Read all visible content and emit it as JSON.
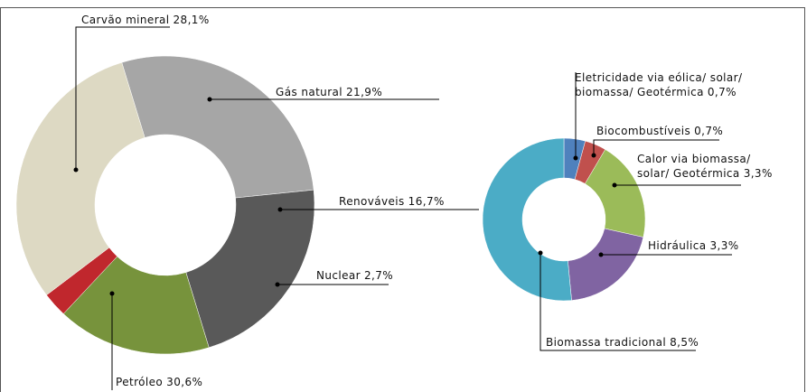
{
  "chart_data": [
    {
      "type": "donut",
      "categories": [
        "Carvão mineral",
        "Gás natural",
        "Renováveis",
        "Nuclear",
        "Petróleo"
      ],
      "values": [
        28.1,
        21.9,
        16.7,
        2.7,
        30.6
      ],
      "value_labels": [
        "28,1%",
        "21,9%",
        "16,7%",
        "2,7%",
        "30,6%"
      ],
      "colors": [
        "#a6a6a6",
        "#595959",
        "#77933c",
        "#c0272d",
        "#ddd9c3"
      ]
    },
    {
      "type": "donut",
      "categories": [
        "Eletricidade via eólica/ solar/ biomassa/ Geotérmica",
        "Biocombustíveis",
        "Calor via biomassa/ solar/ Geotérmica",
        "Hidráulica",
        "Biomassa tradicional"
      ],
      "values": [
        0.7,
        0.7,
        3.3,
        3.3,
        8.5
      ],
      "value_labels": [
        "0,7%",
        "0,7%",
        "3,3%",
        "3,3%",
        "8,5%"
      ],
      "colors": [
        "#4f81bd",
        "#c0504d",
        "#9bbb59",
        "#8064a2",
        "#4bacc6"
      ]
    }
  ]
}
